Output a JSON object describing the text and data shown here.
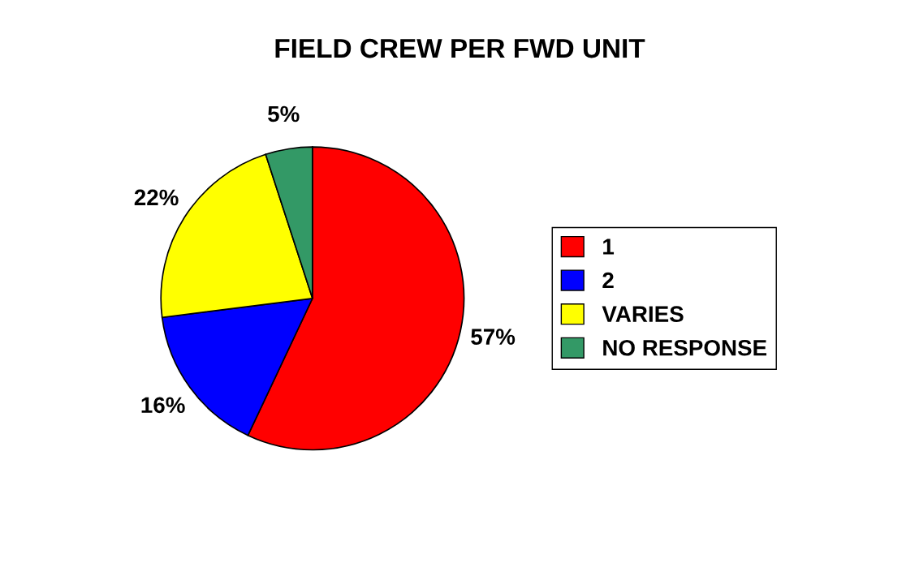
{
  "chart_data": {
    "type": "pie",
    "title": "FIELD CREW PER FWD UNIT",
    "categories": [
      "1",
      "2",
      "VARIES",
      "NO RESPONSE"
    ],
    "values": [
      57,
      16,
      22,
      5
    ],
    "colors": [
      "#ff0000",
      "#0000ff",
      "#ffff00",
      "#339966"
    ],
    "value_labels": [
      "57%",
      "16%",
      "22%",
      "5%"
    ],
    "legend": "right"
  }
}
